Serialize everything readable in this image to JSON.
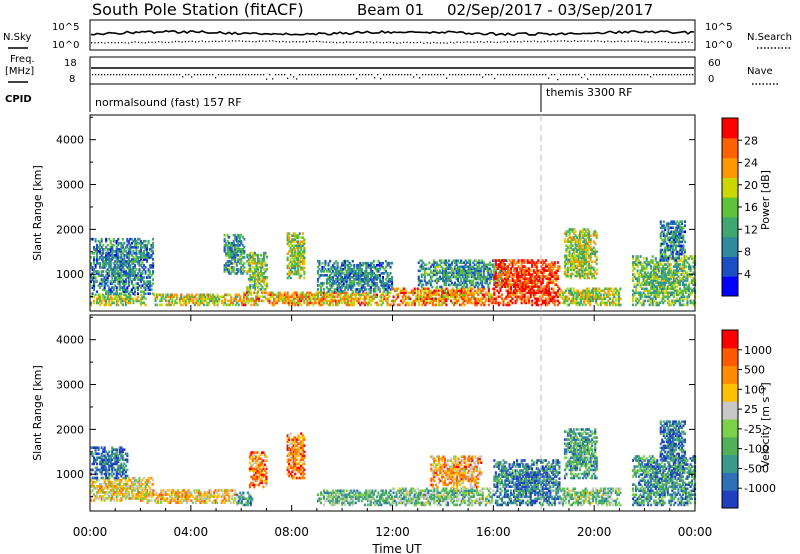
{
  "title": {
    "station": "South Pole Station (fitACF)",
    "beam": "Beam 01",
    "dates": "02/Sep/2017 - 03/Sep/2017"
  },
  "ancillary": {
    "nsky_label": "N.Sky",
    "nsky_ticks": [
      "10^5",
      "10^0"
    ],
    "nsearch_label": "N.Search",
    "nsearch_ticks": [
      "10^5",
      "10^0"
    ],
    "freq_label": "Freq.",
    "freq_unit": "[MHz]",
    "freq_ticks": [
      "18",
      "8"
    ],
    "nave_label": "Nave",
    "nave_ticks": [
      "60",
      "0"
    ],
    "cpid_label": "CPID",
    "cpid_segments": [
      {
        "label": "normalsound (fast) 157 RF",
        "start_hour": 0
      },
      {
        "label": "themis 3300 RF",
        "start_hour": 18
      }
    ]
  },
  "chart_data": [
    {
      "type": "heatmap",
      "name": "power",
      "ylabel": "Slant Range [km]",
      "yticks": [
        "1000",
        "2000",
        "3000",
        "4000"
      ],
      "ylim": [
        180,
        4550
      ],
      "xlim": [
        0,
        24
      ],
      "colorbar_label": "Power [dB]",
      "colorbar_ticks": [
        "28",
        "24",
        "20",
        "16",
        "12",
        "8",
        "4"
      ],
      "colors": [
        "#0000ff",
        "#1d4fc4",
        "#2f8a9b",
        "#3ea66f",
        "#5fc33a",
        "#ccd600",
        "#ff9800",
        "#ff6000",
        "#ff0000"
      ],
      "clusters": [
        {
          "t": [
            0,
            2.2
          ],
          "r": [
            300,
            550
          ],
          "level": 0.55
        },
        {
          "t": [
            0,
            2.5
          ],
          "r": [
            550,
            1800
          ],
          "level": 0.3
        },
        {
          "t": [
            2.5,
            6.0
          ],
          "r": [
            300,
            550
          ],
          "level": 0.6
        },
        {
          "t": [
            5.3,
            6.1
          ],
          "r": [
            1000,
            1900
          ],
          "level": 0.35
        },
        {
          "t": [
            6.2,
            7.0
          ],
          "r": [
            600,
            1500
          ],
          "level": 0.5
        },
        {
          "t": [
            7.8,
            8.5
          ],
          "r": [
            900,
            1900
          ],
          "level": 0.5
        },
        {
          "t": [
            6.0,
            12.0
          ],
          "r": [
            300,
            600
          ],
          "level": 0.7
        },
        {
          "t": [
            9.0,
            12.0
          ],
          "r": [
            600,
            1300
          ],
          "level": 0.3
        },
        {
          "t": [
            12.0,
            16.0
          ],
          "r": [
            300,
            700
          ],
          "level": 0.75
        },
        {
          "t": [
            13.0,
            16.5
          ],
          "r": [
            700,
            1300
          ],
          "level": 0.35
        },
        {
          "t": [
            16.0,
            18.6
          ],
          "r": [
            300,
            1300
          ],
          "level": 0.9
        },
        {
          "t": [
            18.6,
            21.0
          ],
          "r": [
            300,
            700
          ],
          "level": 0.55
        },
        {
          "t": [
            18.8,
            20.1
          ],
          "r": [
            900,
            2000
          ],
          "level": 0.55
        },
        {
          "t": [
            21.5,
            24.0
          ],
          "r": [
            300,
            1400
          ],
          "level": 0.45
        },
        {
          "t": [
            22.6,
            23.6
          ],
          "r": [
            1300,
            2200
          ],
          "level": 0.3
        }
      ]
    },
    {
      "type": "heatmap",
      "name": "velocity",
      "ylabel": "Slant Range [km]",
      "yticks": [
        "1000",
        "2000",
        "3000",
        "4000"
      ],
      "ylim": [
        180,
        4550
      ],
      "xlim": [
        0,
        24
      ],
      "colorbar_label": "Velocity [m s⁻¹]",
      "colorbar_ticks": [
        "1000",
        "500",
        "100",
        "25",
        "-25",
        "-100",
        "-500",
        "-1000"
      ],
      "colors": [
        "#1f3fbf",
        "#2e6fb8",
        "#3a9a8a",
        "#52b05a",
        "#7ad24a",
        "#c8c8c8",
        "#ffc000",
        "#ff8c00",
        "#ff5a00",
        "#ff0000"
      ],
      "clusters": [
        {
          "t": [
            0,
            2.5
          ],
          "r": [
            400,
            900
          ],
          "level": 0.6
        },
        {
          "t": [
            0,
            1.5
          ],
          "r": [
            900,
            1600
          ],
          "level": 0.15
        },
        {
          "t": [
            2.0,
            5.8
          ],
          "r": [
            350,
            650
          ],
          "level": 0.65
        },
        {
          "t": [
            5.8,
            6.4
          ],
          "r": [
            300,
            600
          ],
          "level": 0.3
        },
        {
          "t": [
            6.3,
            7.0
          ],
          "r": [
            700,
            1500
          ],
          "level": 0.75
        },
        {
          "t": [
            7.8,
            8.5
          ],
          "r": [
            900,
            1900
          ],
          "level": 0.8
        },
        {
          "t": [
            9.0,
            12.0
          ],
          "r": [
            300,
            650
          ],
          "level": 0.35
        },
        {
          "t": [
            12.0,
            16.0
          ],
          "r": [
            300,
            700
          ],
          "level": 0.4
        },
        {
          "t": [
            13.5,
            15.5
          ],
          "r": [
            700,
            1400
          ],
          "level": 0.7
        },
        {
          "t": [
            16.0,
            18.6
          ],
          "r": [
            300,
            1300
          ],
          "level": 0.2
        },
        {
          "t": [
            18.6,
            21.0
          ],
          "r": [
            300,
            700
          ],
          "level": 0.4
        },
        {
          "t": [
            18.8,
            20.1
          ],
          "r": [
            900,
            2000
          ],
          "level": 0.3
        },
        {
          "t": [
            21.5,
            24.0
          ],
          "r": [
            300,
            1400
          ],
          "level": 0.25
        },
        {
          "t": [
            22.6,
            23.6
          ],
          "r": [
            1300,
            2200
          ],
          "level": 0.15
        }
      ]
    }
  ],
  "xaxis": {
    "label": "Time UT",
    "ticks": [
      "00:00",
      "04:00",
      "08:00",
      "12:00",
      "16:00",
      "20:00",
      "00:00"
    ]
  }
}
